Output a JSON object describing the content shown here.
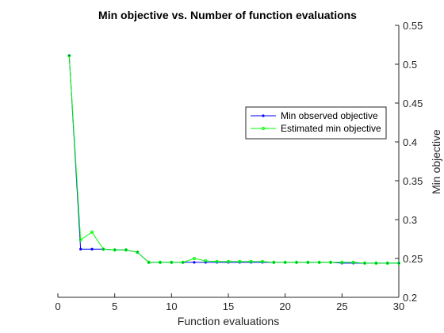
{
  "chart_data": {
    "type": "line",
    "title": "Min objective vs. Number of function evaluations",
    "xlabel": "Function evaluations",
    "ylabel": "Min objective",
    "xlim": [
      0,
      30
    ],
    "ylim": [
      0.2,
      0.55
    ],
    "x_ticks": [
      0,
      5,
      10,
      15,
      20,
      25,
      30
    ],
    "y_ticks": [
      0.2,
      0.25,
      0.3,
      0.35,
      0.4,
      0.45,
      0.5,
      0.55
    ],
    "x_tick_labels": [
      "0",
      "5",
      "10",
      "15",
      "20",
      "25",
      "30"
    ],
    "y_tick_labels": [
      "0.2",
      "0.25",
      "0.3",
      "0.35",
      "0.4",
      "0.45",
      "0.5",
      "0.55"
    ],
    "y_axis_side": "right",
    "grid": false,
    "legend_position": "right",
    "series": [
      {
        "name": "Min observed objective",
        "color": "#0000ff",
        "marker": "dot",
        "x": [
          1,
          2,
          3,
          4,
          5,
          6,
          7,
          8,
          9,
          10,
          11,
          12,
          13,
          14,
          15,
          16,
          17,
          18,
          19,
          20,
          21,
          22,
          23,
          24,
          25,
          26,
          27,
          28,
          29,
          30
        ],
        "y": [
          0.511,
          0.262,
          0.262,
          0.262,
          0.261,
          0.261,
          0.258,
          0.245,
          0.245,
          0.245,
          0.245,
          0.245,
          0.245,
          0.245,
          0.245,
          0.245,
          0.245,
          0.245,
          0.245,
          0.245,
          0.245,
          0.245,
          0.245,
          0.245,
          0.244,
          0.244,
          0.244,
          0.244,
          0.244,
          0.244
        ]
      },
      {
        "name": "Estimated min objective",
        "color": "#00ff00",
        "marker": "circle",
        "x": [
          1,
          2,
          3,
          4,
          5,
          6,
          7,
          8,
          9,
          10,
          11,
          12,
          13,
          14,
          15,
          16,
          17,
          18,
          19,
          20,
          21,
          22,
          23,
          24,
          25,
          26,
          27,
          28,
          29,
          30
        ],
        "y": [
          0.511,
          0.274,
          0.284,
          0.262,
          0.261,
          0.261,
          0.258,
          0.245,
          0.245,
          0.245,
          0.245,
          0.25,
          0.247,
          0.246,
          0.246,
          0.246,
          0.246,
          0.246,
          0.245,
          0.245,
          0.245,
          0.245,
          0.245,
          0.245,
          0.245,
          0.245,
          0.244,
          0.244,
          0.244,
          0.244
        ]
      }
    ]
  }
}
